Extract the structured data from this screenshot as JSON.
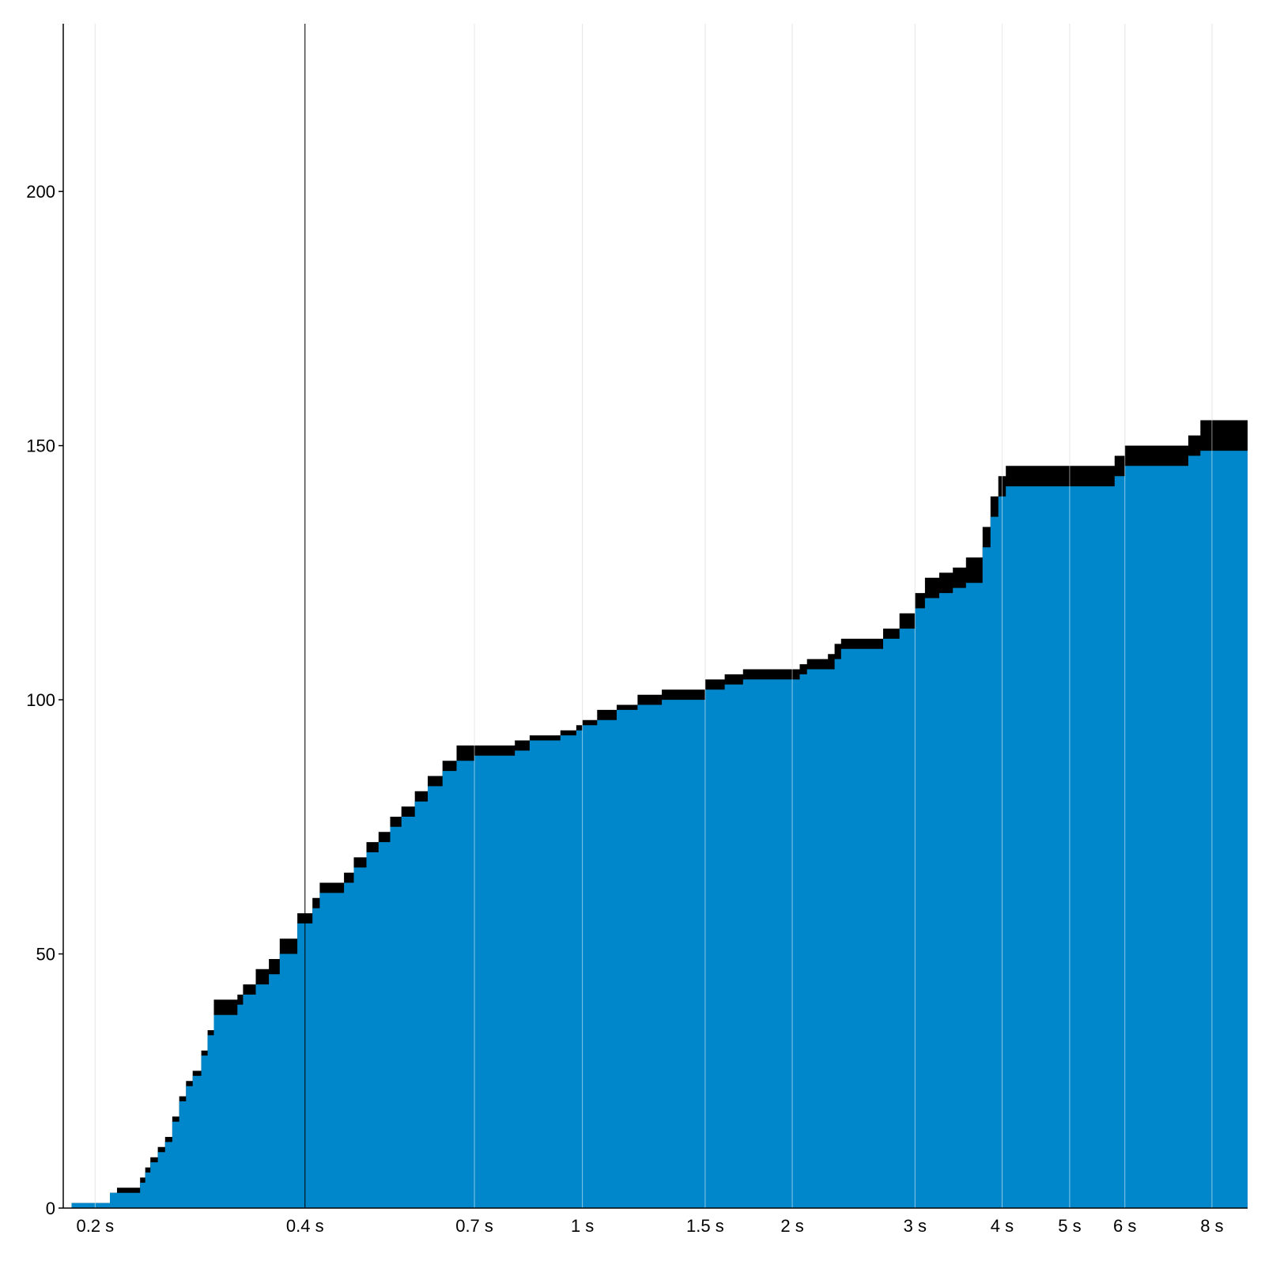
{
  "chart_data": {
    "type": "area",
    "x_scale": "log",
    "x_unit": "s",
    "xlim": [
      0.18,
      9.0
    ],
    "ylim": [
      0,
      233
    ],
    "x_ticks": [
      {
        "value": 0.2,
        "label": "0.2 s"
      },
      {
        "value": 0.4,
        "label": "0.4 s"
      },
      {
        "value": 0.7,
        "label": "0.7 s"
      },
      {
        "value": 1,
        "label": "1 s"
      },
      {
        "value": 1.5,
        "label": "1.5 s"
      },
      {
        "value": 2,
        "label": "2 s"
      },
      {
        "value": 3,
        "label": "3 s"
      },
      {
        "value": 4,
        "label": "4 s"
      },
      {
        "value": 5,
        "label": "5 s"
      },
      {
        "value": 6,
        "label": "6 s"
      },
      {
        "value": 8,
        "label": "8 s"
      }
    ],
    "y_ticks": [
      {
        "value": 0,
        "label": "0"
      },
      {
        "value": 50,
        "label": "50"
      },
      {
        "value": 100,
        "label": "100"
      },
      {
        "value": 150,
        "label": "150"
      },
      {
        "value": 200,
        "label": "200"
      }
    ],
    "highlight_x": 0.4,
    "grid": true,
    "colors": {
      "fill": "#0087cb",
      "band": "#000000",
      "grid": "#d0d0d0",
      "axis": "#000000"
    },
    "series": [
      {
        "kind": "lower",
        "points": [
          [
            0.185,
            1
          ],
          [
            0.205,
            1
          ],
          [
            0.21,
            3
          ],
          [
            0.215,
            3
          ],
          [
            0.228,
            3
          ],
          [
            0.232,
            5
          ],
          [
            0.236,
            7
          ],
          [
            0.24,
            9
          ],
          [
            0.246,
            11
          ],
          [
            0.252,
            13
          ],
          [
            0.258,
            17
          ],
          [
            0.264,
            21
          ],
          [
            0.27,
            24
          ],
          [
            0.276,
            26
          ],
          [
            0.284,
            30
          ],
          [
            0.29,
            34
          ],
          [
            0.296,
            38
          ],
          [
            0.31,
            38
          ],
          [
            0.32,
            40
          ],
          [
            0.326,
            42
          ],
          [
            0.34,
            44
          ],
          [
            0.355,
            46
          ],
          [
            0.368,
            50
          ],
          [
            0.39,
            56
          ],
          [
            0.4,
            56
          ],
          [
            0.41,
            59
          ],
          [
            0.42,
            62
          ],
          [
            0.44,
            62
          ],
          [
            0.455,
            64
          ],
          [
            0.47,
            67
          ],
          [
            0.49,
            70
          ],
          [
            0.51,
            72
          ],
          [
            0.53,
            75
          ],
          [
            0.55,
            77
          ],
          [
            0.575,
            80
          ],
          [
            0.6,
            83
          ],
          [
            0.63,
            86
          ],
          [
            0.66,
            88
          ],
          [
            0.7,
            89
          ],
          [
            0.77,
            89
          ],
          [
            0.8,
            90
          ],
          [
            0.84,
            92
          ],
          [
            0.9,
            92
          ],
          [
            0.93,
            93
          ],
          [
            0.98,
            94
          ],
          [
            1.0,
            95
          ],
          [
            1.05,
            96
          ],
          [
            1.12,
            98
          ],
          [
            1.2,
            99
          ],
          [
            1.3,
            100
          ],
          [
            1.45,
            100
          ],
          [
            1.5,
            102
          ],
          [
            1.6,
            103
          ],
          [
            1.7,
            104
          ],
          [
            2.0,
            104
          ],
          [
            2.05,
            105
          ],
          [
            2.1,
            106
          ],
          [
            2.25,
            106
          ],
          [
            2.3,
            108
          ],
          [
            2.35,
            110
          ],
          [
            2.6,
            110
          ],
          [
            2.7,
            112
          ],
          [
            2.85,
            114
          ],
          [
            3.0,
            118
          ],
          [
            3.1,
            120
          ],
          [
            3.25,
            121
          ],
          [
            3.4,
            122
          ],
          [
            3.55,
            123
          ],
          [
            3.65,
            123
          ],
          [
            3.75,
            130
          ],
          [
            3.85,
            136
          ],
          [
            3.95,
            140
          ],
          [
            4.05,
            142
          ],
          [
            5.0,
            142
          ],
          [
            5.6,
            142
          ],
          [
            5.8,
            144
          ],
          [
            6.0,
            146
          ],
          [
            7.2,
            146
          ],
          [
            7.4,
            148
          ],
          [
            7.7,
            149
          ],
          [
            9.0,
            149
          ]
        ]
      },
      {
        "kind": "upper",
        "points": [
          [
            0.185,
            1
          ],
          [
            0.205,
            1
          ],
          [
            0.21,
            3
          ],
          [
            0.215,
            4
          ],
          [
            0.228,
            4
          ],
          [
            0.232,
            6
          ],
          [
            0.236,
            8
          ],
          [
            0.24,
            10
          ],
          [
            0.246,
            12
          ],
          [
            0.252,
            14
          ],
          [
            0.258,
            18
          ],
          [
            0.264,
            22
          ],
          [
            0.27,
            25
          ],
          [
            0.276,
            27
          ],
          [
            0.284,
            31
          ],
          [
            0.29,
            35
          ],
          [
            0.296,
            41
          ],
          [
            0.31,
            41
          ],
          [
            0.32,
            42
          ],
          [
            0.326,
            44
          ],
          [
            0.34,
            47
          ],
          [
            0.355,
            49
          ],
          [
            0.368,
            53
          ],
          [
            0.39,
            58
          ],
          [
            0.4,
            58
          ],
          [
            0.41,
            61
          ],
          [
            0.42,
            64
          ],
          [
            0.44,
            64
          ],
          [
            0.455,
            66
          ],
          [
            0.47,
            69
          ],
          [
            0.49,
            72
          ],
          [
            0.51,
            74
          ],
          [
            0.53,
            77
          ],
          [
            0.55,
            79
          ],
          [
            0.575,
            82
          ],
          [
            0.6,
            85
          ],
          [
            0.63,
            88
          ],
          [
            0.66,
            91
          ],
          [
            0.7,
            91
          ],
          [
            0.77,
            91
          ],
          [
            0.8,
            92
          ],
          [
            0.84,
            93
          ],
          [
            0.9,
            93
          ],
          [
            0.93,
            94
          ],
          [
            0.98,
            95
          ],
          [
            1.0,
            96
          ],
          [
            1.05,
            98
          ],
          [
            1.12,
            99
          ],
          [
            1.2,
            101
          ],
          [
            1.3,
            102
          ],
          [
            1.45,
            102
          ],
          [
            1.5,
            104
          ],
          [
            1.6,
            105
          ],
          [
            1.7,
            106
          ],
          [
            2.0,
            106
          ],
          [
            2.05,
            107
          ],
          [
            2.1,
            108
          ],
          [
            2.25,
            109
          ],
          [
            2.3,
            111
          ],
          [
            2.35,
            112
          ],
          [
            2.6,
            112
          ],
          [
            2.7,
            114
          ],
          [
            2.85,
            117
          ],
          [
            3.0,
            121
          ],
          [
            3.1,
            124
          ],
          [
            3.25,
            125
          ],
          [
            3.4,
            126
          ],
          [
            3.55,
            128
          ],
          [
            3.65,
            128
          ],
          [
            3.75,
            134
          ],
          [
            3.85,
            140
          ],
          [
            3.95,
            144
          ],
          [
            4.05,
            146
          ],
          [
            5.0,
            146
          ],
          [
            5.6,
            146
          ],
          [
            5.8,
            148
          ],
          [
            6.0,
            150
          ],
          [
            7.2,
            150
          ],
          [
            7.4,
            152
          ],
          [
            7.7,
            155
          ],
          [
            9.0,
            155
          ]
        ]
      }
    ]
  }
}
